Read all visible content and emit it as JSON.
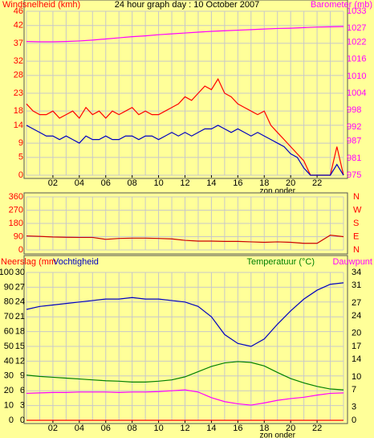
{
  "chart_data": [
    {
      "type": "line",
      "title": "24 hour graph day : 10 October 2007",
      "y_label": "Windsnelheid (kmh)",
      "y_color": "#ff0000",
      "y2_label": "Barometer (mb)",
      "y2_color": "#ff00ff",
      "annotation": {
        "text": "zon onder",
        "x": 19
      },
      "xlim": [
        0,
        24
      ],
      "xticks": [
        {
          "value": 2,
          "label": "02"
        },
        {
          "value": 4,
          "label": "04"
        },
        {
          "value": 6,
          "label": "06"
        },
        {
          "value": 8,
          "label": "08"
        },
        10,
        12,
        14,
        16,
        18,
        20,
        22
      ],
      "ylim": [
        0,
        46
      ],
      "yticks": [
        0,
        5,
        9,
        14,
        18,
        23,
        28,
        32,
        37,
        42,
        46
      ],
      "y2lim": [
        975,
        1033
      ],
      "y2ticks": [
        975,
        981,
        987,
        992,
        998,
        1004,
        1010,
        1016,
        1022,
        1027,
        1033
      ],
      "grid": true,
      "series": [
        {
          "color": "#ff0000",
          "x": [
            0,
            0.5,
            1,
            1.5,
            2,
            2.5,
            3,
            3.5,
            4,
            4.5,
            5,
            5.5,
            6,
            6.5,
            7,
            7.5,
            8,
            8.5,
            9,
            9.5,
            10,
            10.5,
            11,
            11.5,
            12,
            12.5,
            13,
            13.5,
            14,
            14.5,
            15,
            15.5,
            16,
            16.5,
            17,
            17.5,
            18,
            18.5,
            19,
            19.5,
            20,
            20.5,
            21,
            21.5,
            22,
            22.5,
            23,
            23.5,
            24
          ],
          "values": [
            20,
            18,
            17,
            17,
            18,
            16,
            17,
            18,
            16,
            19,
            17,
            18,
            16,
            18,
            17,
            18,
            19,
            17,
            18,
            17,
            17,
            18,
            19,
            20,
            22,
            21,
            23,
            25,
            24,
            27,
            23,
            22,
            20,
            19,
            18,
            17,
            18,
            14,
            12,
            10,
            8,
            6,
            4,
            0,
            0,
            0,
            0,
            8,
            0
          ]
        },
        {
          "color": "#0000c0",
          "x": [
            0,
            0.5,
            1,
            1.5,
            2,
            2.5,
            3,
            3.5,
            4,
            4.5,
            5,
            5.5,
            6,
            6.5,
            7,
            7.5,
            8,
            8.5,
            9,
            9.5,
            10,
            10.5,
            11,
            11.5,
            12,
            12.5,
            13,
            13.5,
            14,
            14.5,
            15,
            15.5,
            16,
            16.5,
            17,
            17.5,
            18,
            18.5,
            19,
            19.5,
            20,
            20.5,
            21,
            21.5,
            22,
            22.5,
            23,
            23.5,
            24
          ],
          "values": [
            14,
            13,
            12,
            11,
            11,
            10,
            11,
            10,
            9,
            11,
            10,
            10,
            11,
            10,
            10,
            11,
            11,
            10,
            11,
            11,
            10,
            11,
            12,
            11,
            12,
            11,
            12,
            13,
            13,
            14,
            13,
            12,
            13,
            12,
            11,
            12,
            11,
            10,
            9,
            8,
            6,
            5,
            2,
            0,
            0,
            0,
            0,
            3,
            0
          ]
        },
        {
          "color": "#ff00ff",
          "axis": "y2",
          "x": [
            0,
            1,
            2,
            3,
            4,
            5,
            6,
            7,
            8,
            9,
            10,
            11,
            12,
            13,
            14,
            15,
            16,
            17,
            18,
            19,
            20,
            21,
            22,
            23,
            24
          ],
          "values": [
            1022.3,
            1022.2,
            1022.2,
            1022.3,
            1022.5,
            1022.8,
            1023.2,
            1023.6,
            1024,
            1024.3,
            1024.7,
            1025,
            1025.3,
            1025.6,
            1025.9,
            1026.1,
            1026.3,
            1026.5,
            1026.7,
            1026.9,
            1027,
            1027.2,
            1027.4,
            1027.5,
            1027.6
          ]
        }
      ]
    },
    {
      "type": "line",
      "y_color": "#ff0000",
      "y2_color": "#ff0000",
      "xlim": [
        0,
        24
      ],
      "ylim": [
        0,
        360
      ],
      "yticks": [
        0,
        90,
        180,
        270,
        360
      ],
      "y2lim": [
        0,
        360
      ],
      "y2ticks": [
        {
          "value": 0,
          "label": "N"
        },
        {
          "value": 90,
          "label": "E"
        },
        {
          "value": 180,
          "label": "S"
        },
        {
          "value": 270,
          "label": "W"
        },
        {
          "value": 360,
          "label": "N"
        }
      ],
      "grid": true,
      "series": [
        {
          "color": "#cc0000",
          "x": [
            0,
            1,
            2,
            3,
            4,
            5,
            6,
            7,
            8,
            9,
            10,
            11,
            12,
            13,
            14,
            15,
            16,
            17,
            18,
            19,
            20,
            21,
            22,
            23,
            24
          ],
          "values": [
            95,
            92,
            88,
            86,
            85,
            85,
            72,
            78,
            80,
            80,
            78,
            75,
            65,
            60,
            60,
            58,
            58,
            55,
            52,
            55,
            52,
            45,
            45,
            100,
            90
          ]
        }
      ]
    },
    {
      "type": "line",
      "rain_label": "Neerslag (mm",
      "y_label": "Vochtigheid",
      "y2_label": "Temperatuur (°C)",
      "dew_label": "Dauwpunt",
      "annotation": {
        "text": "zon onder",
        "x": 19
      },
      "xlim": [
        0,
        24
      ],
      "xticks": [
        {
          "value": 2,
          "label": "02"
        },
        {
          "value": 4,
          "label": "04"
        },
        {
          "value": 6,
          "label": "06"
        },
        {
          "value": 8,
          "label": "08"
        },
        10,
        12,
        14,
        16,
        18,
        20,
        22
      ],
      "ylim": [
        0,
        100
      ],
      "yticks": [
        0,
        10,
        20,
        30,
        40,
        50,
        60,
        70,
        80,
        90,
        100
      ],
      "rain_lim": [
        0,
        30
      ],
      "rain_ticks": [
        0,
        3,
        6,
        9,
        12,
        15,
        18,
        21,
        24,
        27,
        30
      ],
      "y2lim": [
        0,
        34
      ],
      "y2ticks": [
        0,
        3,
        7,
        10,
        14,
        17,
        20,
        24,
        27,
        31,
        34
      ],
      "grid": true,
      "series": [
        {
          "color": "#ff0000",
          "axis": "rain",
          "x": [
            0,
            1,
            2,
            3,
            4,
            5,
            6,
            7,
            8,
            9,
            10,
            11,
            12,
            13,
            14,
            15,
            16,
            17,
            18,
            19,
            20,
            21,
            22,
            23,
            24
          ],
          "values": [
            0,
            0,
            0,
            0,
            0,
            0,
            0,
            0,
            0,
            0,
            0,
            0,
            0,
            0,
            0,
            0,
            0,
            0,
            0,
            0,
            0,
            0,
            0,
            0,
            0
          ]
        },
        {
          "color": "#0000c0",
          "x": [
            0,
            1,
            2,
            3,
            4,
            5,
            6,
            7,
            8,
            9,
            10,
            11,
            12,
            13,
            14,
            15,
            16,
            17,
            18,
            19,
            20,
            21,
            22,
            23,
            24
          ],
          "values": [
            75,
            77,
            78,
            79,
            80,
            81,
            82,
            82,
            83,
            82,
            82,
            81,
            80,
            77,
            70,
            58,
            52,
            50,
            55,
            65,
            74,
            82,
            88,
            92,
            93
          ]
        },
        {
          "color": "#008000",
          "axis": "y2",
          "x": [
            0,
            1,
            2,
            3,
            4,
            5,
            6,
            7,
            8,
            9,
            10,
            11,
            12,
            13,
            14,
            15,
            16,
            17,
            18,
            19,
            20,
            21,
            22,
            23,
            24
          ],
          "values": [
            10.4,
            10.1,
            9.9,
            9.7,
            9.5,
            9.3,
            9.1,
            9.0,
            8.8,
            8.8,
            9.0,
            9.3,
            10.0,
            11.2,
            12.4,
            13.2,
            13.5,
            13.3,
            12.5,
            11.0,
            9.6,
            8.6,
            7.8,
            7.2,
            7.0
          ]
        },
        {
          "color": "#ff00ff",
          "axis": "y2",
          "x": [
            0,
            1,
            2,
            3,
            4,
            5,
            6,
            7,
            8,
            9,
            10,
            11,
            12,
            13,
            14,
            15,
            16,
            17,
            18,
            19,
            20,
            21,
            22,
            23,
            24
          ],
          "values": [
            6.2,
            6.3,
            6.4,
            6.4,
            6.5,
            6.5,
            6.5,
            6.4,
            6.5,
            6.5,
            6.6,
            6.8,
            7.0,
            6.5,
            5.2,
            4.3,
            3.8,
            3.5,
            4.0,
            4.6,
            5.0,
            5.3,
            5.8,
            6.2,
            6.3
          ]
        }
      ]
    }
  ]
}
